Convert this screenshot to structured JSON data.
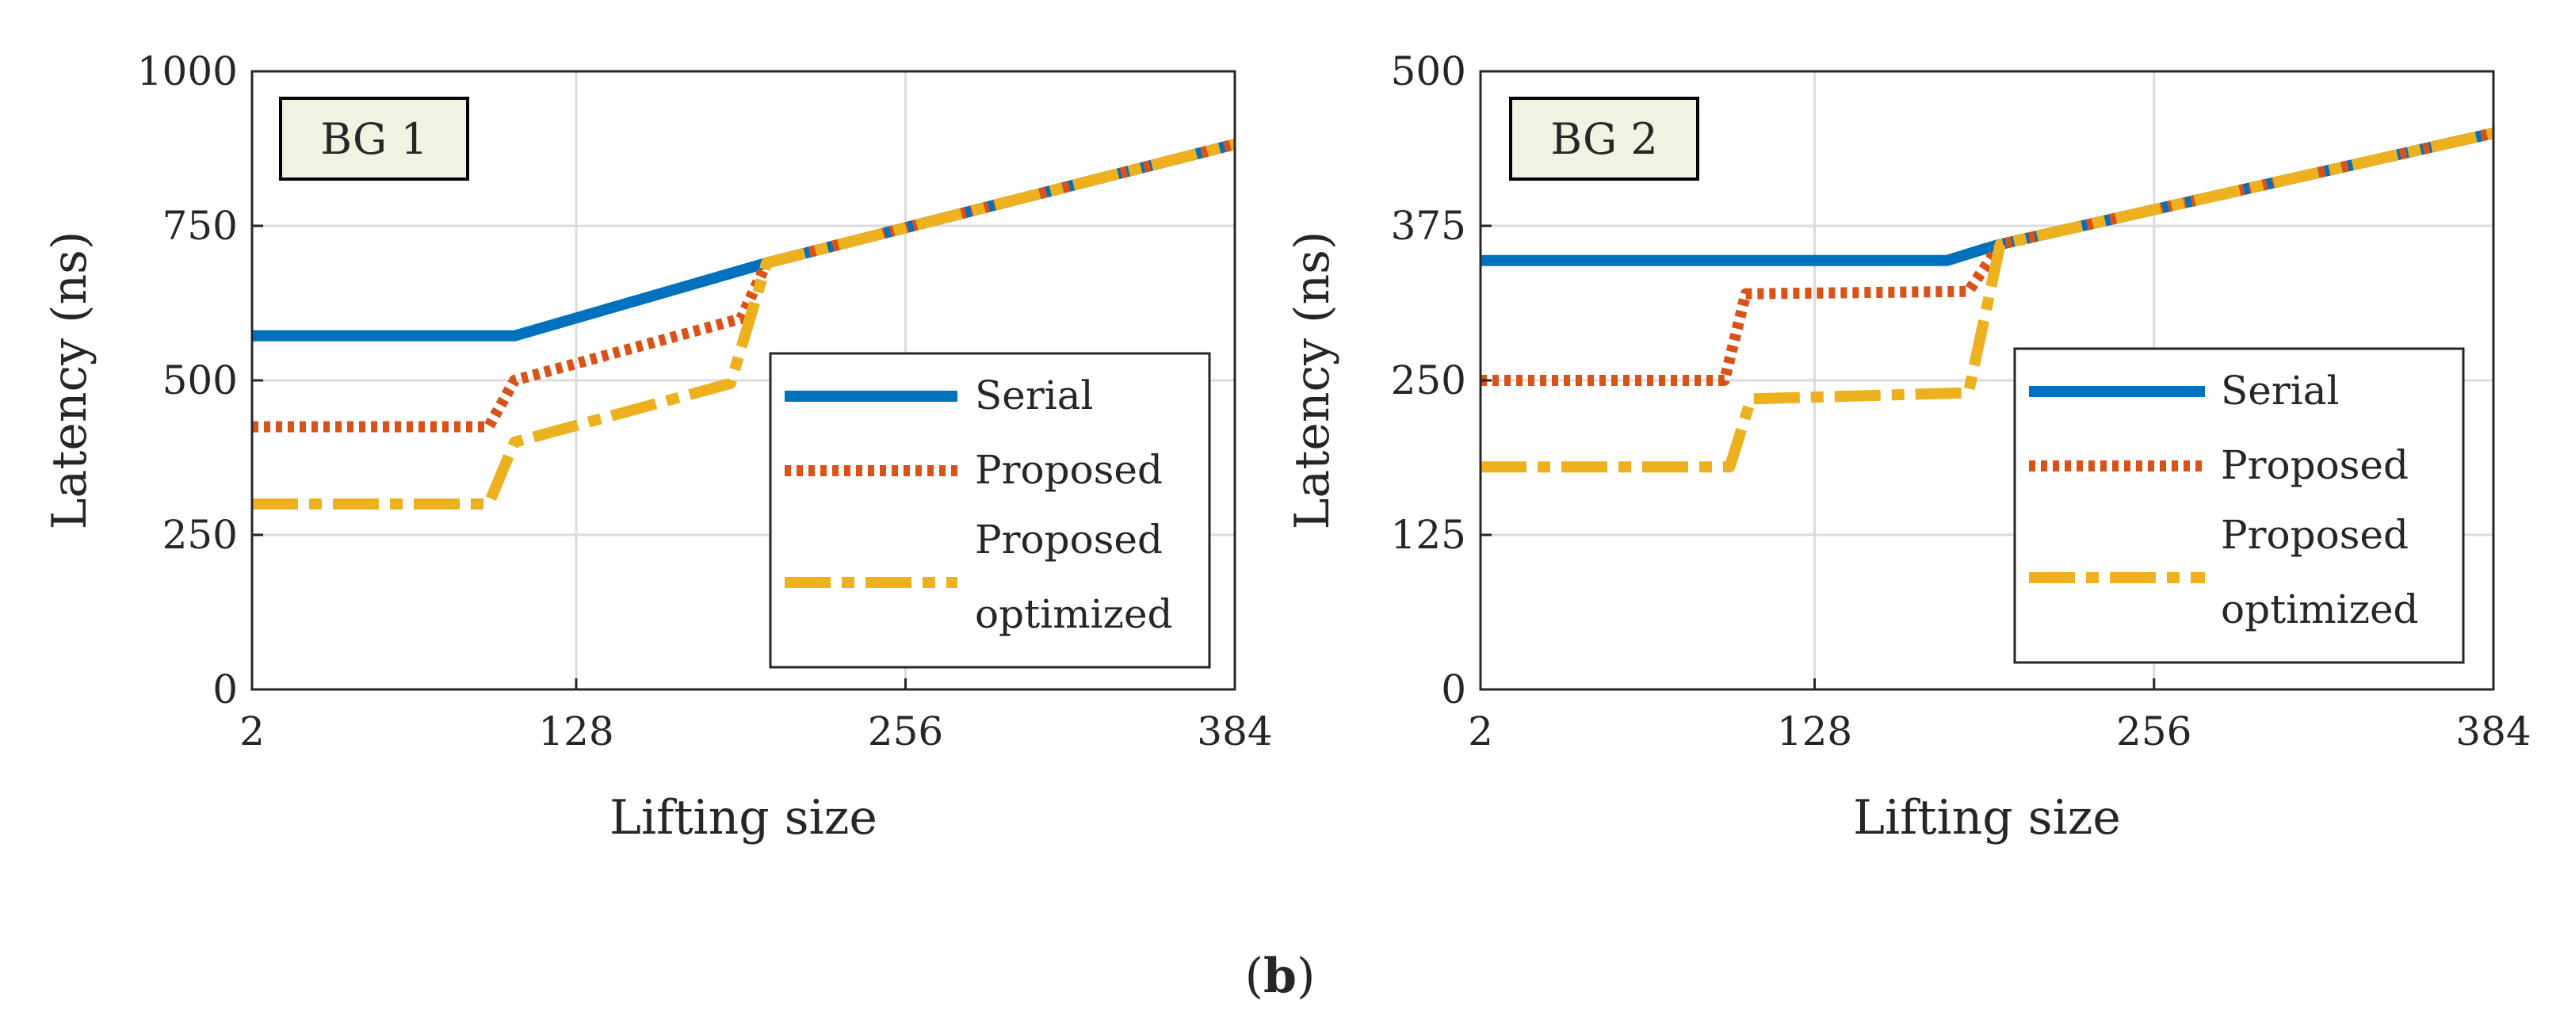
{
  "caption": {
    "open": "(",
    "letter": "b",
    "close": ")"
  },
  "colors": {
    "serial": "#0072BD",
    "proposed": "#D95319",
    "optimized": "#EDB120",
    "tag_bg": "#EEF3E2",
    "grid": "#DCDCDC"
  },
  "chart_data": [
    {
      "type": "line",
      "tag": "BG 1",
      "xlabel": "Lifting size",
      "ylabel": "Latency (ns)",
      "xlim": [
        2,
        384
      ],
      "ylim": [
        0,
        1000
      ],
      "xticks": [
        2,
        128,
        256,
        384
      ],
      "yticks": [
        0,
        250,
        500,
        750,
        1000
      ],
      "grid": true,
      "legend_position": "center-right",
      "series": [
        {
          "name": "Serial",
          "style": "solid",
          "color": "#0072BD",
          "x": [
            2,
            104,
            202,
            384
          ],
          "y": [
            572,
            572,
            690,
            882
          ]
        },
        {
          "name": "Proposed",
          "style": "dotted",
          "color": "#D95319",
          "x": [
            2,
            94,
            104,
            192,
            202,
            384
          ],
          "y": [
            425,
            425,
            500,
            600,
            690,
            882
          ]
        },
        {
          "name": "Proposed optimized",
          "style": "dashdot",
          "color": "#EDB120",
          "x": [
            2,
            94,
            104,
            188,
            202,
            384
          ],
          "y": [
            300,
            300,
            400,
            495,
            690,
            882
          ]
        }
      ],
      "legend": [
        {
          "lines": [
            "Serial"
          ]
        },
        {
          "lines": [
            "Proposed"
          ]
        },
        {
          "lines": [
            "Proposed",
            "optimized"
          ]
        }
      ]
    },
    {
      "type": "line",
      "tag": "BG 2",
      "xlabel": "Lifting size",
      "ylabel": "Latency (ns)",
      "xlim": [
        2,
        384
      ],
      "ylim": [
        0,
        500
      ],
      "xticks": [
        2,
        128,
        256,
        384
      ],
      "yticks": [
        0,
        125,
        250,
        375,
        500
      ],
      "grid": true,
      "legend_position": "center-right",
      "series": [
        {
          "name": "Serial",
          "style": "solid",
          "color": "#0072BD",
          "x": [
            2,
            178,
            190,
            198,
            384
          ],
          "y": [
            347,
            347,
            355,
            360,
            450
          ]
        },
        {
          "name": "Proposed",
          "style": "dotted",
          "color": "#D95319",
          "x": [
            2,
            94,
            102,
            186,
            198,
            384
          ],
          "y": [
            250,
            250,
            320,
            322,
            360,
            450
          ]
        },
        {
          "name": "Proposed optimized",
          "style": "dashdot",
          "color": "#EDB120",
          "x": [
            2,
            96,
            104,
            186,
            198,
            384
          ],
          "y": [
            180,
            180,
            235,
            240,
            360,
            450
          ]
        }
      ],
      "legend": [
        {
          "lines": [
            "Serial"
          ]
        },
        {
          "lines": [
            "Proposed"
          ]
        },
        {
          "lines": [
            "Proposed",
            "optimized"
          ]
        }
      ]
    }
  ]
}
